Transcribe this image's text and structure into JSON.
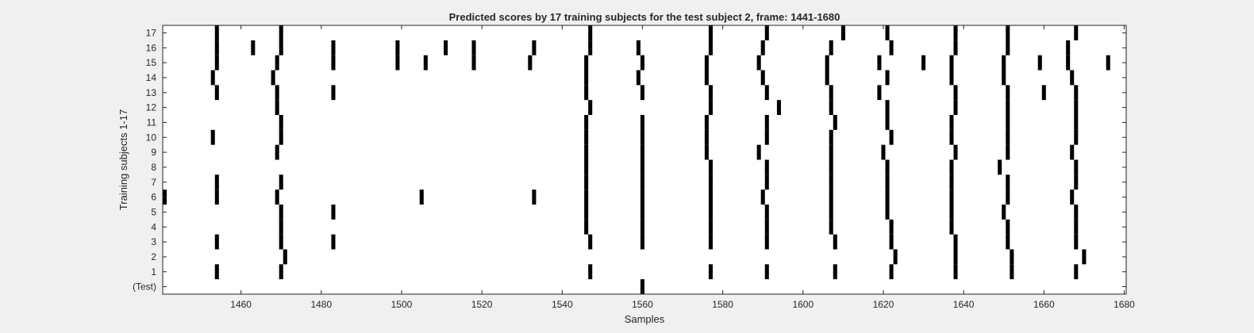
{
  "chart_data": {
    "type": "heatmap",
    "title": "Predicted scores by 17 training subjects for the test subject 2, frame: 1441-1680",
    "xlabel": "Samples",
    "ylabel": "Training subjects 1-17",
    "xlim": [
      1441,
      1680
    ],
    "x_ticks": [
      1460,
      1480,
      1500,
      1520,
      1540,
      1560,
      1580,
      1600,
      1620,
      1640,
      1660,
      1680
    ],
    "y_tick_labels": [
      "(Test)",
      "1",
      "2",
      "3",
      "4",
      "5",
      "6",
      "7",
      "8",
      "9",
      "10",
      "11",
      "12",
      "13",
      "14",
      "15",
      "16",
      "17"
    ],
    "value_colors": {
      "0": "#ffffff",
      "1": "#000000"
    },
    "grid": false,
    "rows": [
      {
        "label": "(Test)",
        "x": [
          1560
        ]
      },
      {
        "label": "1",
        "x": [
          1454,
          1470,
          1547,
          1577,
          1591,
          1608,
          1622,
          1638,
          1652,
          1668
        ]
      },
      {
        "label": "2",
        "x": [
          1471,
          1623,
          1638,
          1652,
          1670
        ]
      },
      {
        "label": "3",
        "x": [
          1454,
          1470,
          1483,
          1547,
          1560,
          1577,
          1591,
          1608,
          1622,
          1638,
          1651,
          1668
        ]
      },
      {
        "label": "4",
        "x": [
          1470,
          1546,
          1560,
          1577,
          1591,
          1607,
          1622,
          1637,
          1651,
          1668
        ]
      },
      {
        "label": "5",
        "x": [
          1470,
          1483,
          1546,
          1560,
          1577,
          1591,
          1607,
          1621,
          1637,
          1650,
          1668
        ]
      },
      {
        "label": "6",
        "x": [
          1441,
          1454,
          1469,
          1505,
          1533,
          1546,
          1560,
          1577,
          1590,
          1607,
          1621,
          1637,
          1651,
          1667
        ]
      },
      {
        "label": "7",
        "x": [
          1454,
          1470,
          1546,
          1560,
          1577,
          1591,
          1607,
          1621,
          1637,
          1651,
          1668
        ]
      },
      {
        "label": "8",
        "x": [
          1546,
          1560,
          1577,
          1591,
          1607,
          1621,
          1637,
          1649,
          1668
        ]
      },
      {
        "label": "9",
        "x": [
          1469,
          1546,
          1560,
          1576,
          1589,
          1607,
          1620,
          1638,
          1651,
          1667
        ]
      },
      {
        "label": "10",
        "x": [
          1453,
          1470,
          1546,
          1560,
          1576,
          1591,
          1607,
          1622,
          1637,
          1651,
          1668
        ]
      },
      {
        "label": "11",
        "x": [
          1470,
          1546,
          1560,
          1576,
          1591,
          1608,
          1621,
          1637,
          1651,
          1668
        ]
      },
      {
        "label": "12",
        "x": [
          1469,
          1547,
          1577,
          1594,
          1607,
          1621,
          1638,
          1651,
          1668
        ]
      },
      {
        "label": "13",
        "x": [
          1454,
          1469,
          1483,
          1546,
          1560,
          1577,
          1591,
          1607,
          1619,
          1638,
          1651,
          1660,
          1668
        ]
      },
      {
        "label": "14",
        "x": [
          1453,
          1468,
          1546,
          1559,
          1576,
          1590,
          1606,
          1621,
          1637,
          1650,
          1667
        ]
      },
      {
        "label": "15",
        "x": [
          1454,
          1469,
          1483,
          1499,
          1506,
          1518,
          1532,
          1546,
          1560,
          1576,
          1589,
          1606,
          1619,
          1630,
          1637,
          1650,
          1659,
          1666,
          1676
        ]
      },
      {
        "label": "16",
        "x": [
          1454,
          1463,
          1470,
          1483,
          1499,
          1511,
          1518,
          1533,
          1547,
          1559,
          1577,
          1590,
          1607,
          1622,
          1638,
          1651,
          1666
        ]
      },
      {
        "label": "17",
        "x": [
          1454,
          1470,
          1547,
          1577,
          1591,
          1610,
          1621,
          1638,
          1651,
          1668
        ]
      }
    ]
  }
}
